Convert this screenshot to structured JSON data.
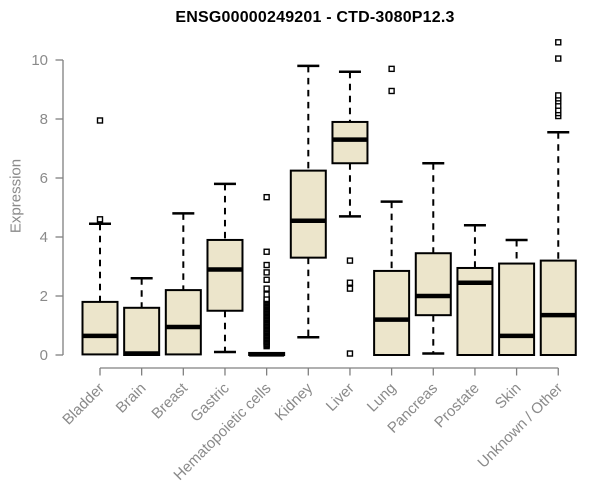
{
  "chart_data": {
    "type": "boxplot",
    "title": "ENSG00000249201 - CTD-3080P12.3",
    "ylabel": "Expression",
    "xlabel": "",
    "yticks": [
      0,
      2,
      4,
      6,
      8,
      10
    ],
    "ylim": [
      -0.45,
      11.05
    ],
    "grid": false,
    "legend": "none",
    "categories": [
      "Bladder",
      "Brain",
      "Breast",
      "Gastric",
      "Hematopoietic cells",
      "Kidney",
      "Liver",
      "Lung",
      "Pancreas",
      "Prostate",
      "Skin",
      "Unknown / Other"
    ],
    "series": [
      {
        "name": "Bladder",
        "whisker_low": 0,
        "q1": 0.02,
        "median": 0.65,
        "q3": 1.8,
        "whisker_high": 4.45,
        "outliers": [
          4.6,
          7.95
        ]
      },
      {
        "name": "Brain",
        "whisker_low": 0,
        "q1": 0,
        "median": 0.05,
        "q3": 1.6,
        "whisker_high": 2.6,
        "outliers": []
      },
      {
        "name": "Breast",
        "whisker_low": 0,
        "q1": 0.02,
        "median": 0.95,
        "q3": 2.2,
        "whisker_high": 4.8,
        "outliers": []
      },
      {
        "name": "Gastric",
        "whisker_low": 0.1,
        "q1": 1.5,
        "median": 2.9,
        "q3": 3.9,
        "whisker_high": 5.8,
        "outliers": []
      },
      {
        "name": "Hematopoietic cells",
        "whisker_low": 0,
        "q1": 0,
        "median": 0.02,
        "q3": 0.07,
        "whisker_high": 0.1,
        "outliers": [
          0.3,
          0.34,
          0.38,
          0.42,
          0.46,
          0.5,
          0.54,
          0.58,
          0.62,
          0.66,
          0.7,
          0.74,
          0.78,
          0.82,
          0.86,
          0.9,
          0.94,
          0.98,
          1.02,
          1.06,
          1.1,
          1.14,
          1.18,
          1.22,
          1.26,
          1.3,
          1.34,
          1.38,
          1.42,
          1.46,
          1.5,
          1.54,
          1.58,
          1.62,
          1.66,
          1.7,
          1.74,
          1.78,
          1.82,
          1.86,
          1.9,
          2.05,
          2.25,
          2.55,
          2.8,
          3.05,
          3.5,
          5.35
        ]
      },
      {
        "name": "Kidney",
        "whisker_low": 0.6,
        "q1": 3.3,
        "median": 4.55,
        "q3": 6.25,
        "whisker_high": 9.8,
        "outliers": []
      },
      {
        "name": "Liver",
        "whisker_low": 4.7,
        "q1": 6.5,
        "median": 7.3,
        "q3": 7.9,
        "whisker_high": 9.6,
        "outliers": [
          0.05,
          2.25,
          2.45,
          3.2
        ]
      },
      {
        "name": "Lung",
        "whisker_low": 0,
        "q1": 0,
        "median": 1.2,
        "q3": 2.85,
        "whisker_high": 5.2,
        "outliers": [
          8.95,
          9.7
        ]
      },
      {
        "name": "Pancreas",
        "whisker_low": 0.05,
        "q1": 1.35,
        "median": 2.0,
        "q3": 3.45,
        "whisker_high": 6.5,
        "outliers": []
      },
      {
        "name": "Prostate",
        "whisker_low": 0,
        "q1": 0,
        "median": 2.45,
        "q3": 2.95,
        "whisker_high": 4.4,
        "outliers": []
      },
      {
        "name": "Skin",
        "whisker_low": 0,
        "q1": 0,
        "median": 0.65,
        "q3": 3.1,
        "whisker_high": 3.9,
        "outliers": []
      },
      {
        "name": "Unknown / Other",
        "whisker_low": 0,
        "q1": 0,
        "median": 1.35,
        "q3": 3.2,
        "whisker_high": 7.55,
        "outliers": [
          8.1,
          8.2,
          8.3,
          8.45,
          8.6,
          8.7,
          8.8,
          10.05,
          10.6
        ]
      }
    ],
    "colors": {
      "box_fill": "#ECE5CB",
      "box_stroke": "#000000",
      "median": "#000000",
      "whisker": "#000000",
      "outlier_fill": "#ffffff",
      "axis": "#808080",
      "tick_text": "#8a8a8a",
      "title": "#000000",
      "background": "#ffffff"
    }
  }
}
